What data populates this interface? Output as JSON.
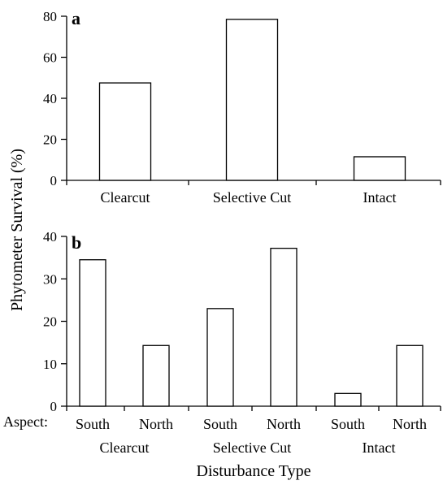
{
  "ylabel": "Phytometer Survival (%)",
  "xlabel": "Disturbance Type",
  "aspect_label": "Aspect:",
  "chart_data": [
    {
      "type": "bar",
      "panel": "a",
      "categories": [
        "Clearcut",
        "Selective Cut",
        "Intact"
      ],
      "values": [
        47.5,
        78.5,
        11.5
      ],
      "ylim": [
        0,
        80
      ],
      "yticks": [
        0,
        20,
        40,
        60,
        80
      ]
    },
    {
      "type": "bar",
      "panel": "b",
      "groups": [
        "Clearcut",
        "Selective Cut",
        "Intact"
      ],
      "categories": [
        "South",
        "North",
        "South",
        "North",
        "South",
        "North"
      ],
      "values": [
        34.5,
        14.3,
        23,
        37.2,
        3,
        14.3
      ],
      "ylim": [
        0,
        40
      ],
      "yticks": [
        0,
        10,
        20,
        30,
        40
      ]
    }
  ]
}
